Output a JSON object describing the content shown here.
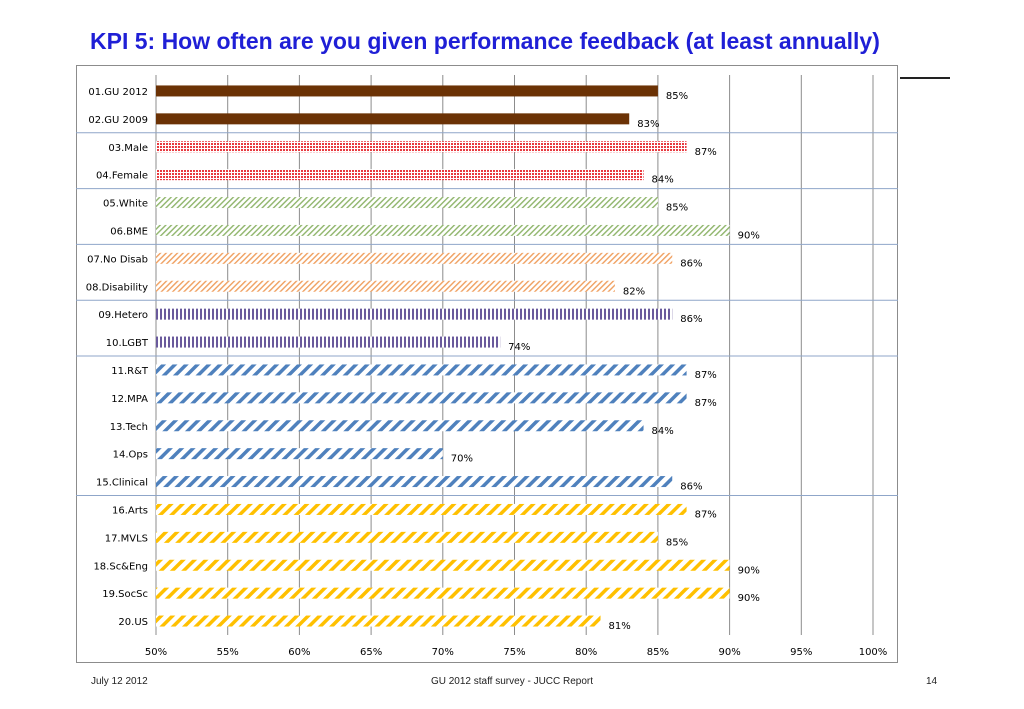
{
  "slide": {
    "title": "KPI 5: How often are you given performance feedback (at least annually)"
  },
  "footer": {
    "date": "July 12 2012",
    "center": "GU 2012 staff survey -  JUCC Report",
    "page": "14"
  },
  "chart_data": {
    "type": "bar",
    "orientation": "horizontal",
    "title": "",
    "xlabel": "",
    "ylabel": "",
    "xlim": [
      50,
      100
    ],
    "x_ticks": [
      "50%",
      "55%",
      "60%",
      "65%",
      "70%",
      "75%",
      "80%",
      "85%",
      "90%",
      "95%",
      "100%"
    ],
    "grid": "vertical",
    "categories": [
      "01.GU 2012",
      "02.GU 2009",
      "03.Male",
      "04.Female",
      "05.White",
      "06.BME",
      "07.No Disab",
      "08.Disability",
      "09.Hetero",
      "10.LGBT",
      "11.R&T",
      "12.MPA",
      "13.Tech",
      "14.Ops",
      "15.Clinical",
      "16.Arts",
      "17.MVLS",
      "18.Sc&Eng",
      "19.SocSc",
      "20.US"
    ],
    "values": [
      85,
      83,
      87,
      84,
      85,
      90,
      86,
      82,
      86,
      74,
      87,
      87,
      84,
      70,
      86,
      87,
      85,
      90,
      90,
      81
    ],
    "value_labels": [
      "85%",
      "83%",
      "87%",
      "84%",
      "85%",
      "90%",
      "86%",
      "82%",
      "86%",
      "74%",
      "87%",
      "87%",
      "84%",
      "70%",
      "86%",
      "87%",
      "85%",
      "90%",
      "90%",
      "81%"
    ],
    "groups": [
      {
        "rows": [
          0,
          1
        ],
        "pattern": "solid",
        "color": "#6b3205"
      },
      {
        "rows": [
          2,
          3
        ],
        "pattern": "dots",
        "color": "#e8393f"
      },
      {
        "rows": [
          4,
          5
        ],
        "pattern": "diagonal",
        "color": "#8fb56b"
      },
      {
        "rows": [
          6,
          7
        ],
        "pattern": "diagonal",
        "color": "#f0a060"
      },
      {
        "rows": [
          8,
          9
        ],
        "pattern": "vertical",
        "color": "#6a5a9c"
      },
      {
        "rows": [
          10,
          11,
          12,
          13,
          14
        ],
        "pattern": "wide-diagonal",
        "color": "#4f81bd"
      },
      {
        "rows": [
          15,
          16,
          17,
          18,
          19
        ],
        "pattern": "wide-diagonal",
        "color": "#ffc000"
      }
    ]
  }
}
